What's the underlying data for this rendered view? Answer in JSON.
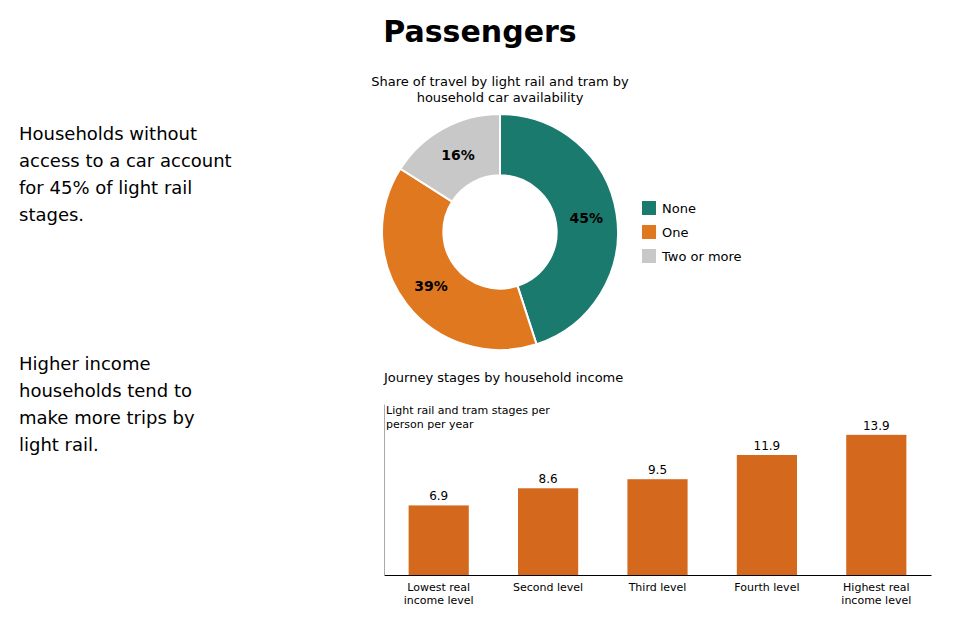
{
  "title": "Passengers",
  "annotations": [
    "Households without\naccess to a car account\nfor 45% of light rail\nstages.",
    "Higher income\nhouseholds tend to\nmake more trips by\nlight rail."
  ],
  "chart_data": [
    {
      "type": "pie",
      "title": "Share of travel by light rail and tram by\nhousehold car availability",
      "categories": [
        "None",
        "One",
        "Two or more"
      ],
      "values": [
        45,
        39,
        16
      ],
      "value_labels": [
        "45%",
        "39%",
        "16%"
      ],
      "colors": [
        "#1a7a6e",
        "#e07820",
        "#c8c8c8"
      ],
      "data_labels": true,
      "legend": "right"
    },
    {
      "type": "bar",
      "title": "Journey stages by household income",
      "subtitle": "Light rail and tram stages per\nperson per year",
      "categories": [
        "Lowest real\nincome level",
        "Second level",
        "Third level",
        "Fourth level",
        "Highest real\nincome level"
      ],
      "values": [
        6.9,
        8.6,
        9.5,
        11.9,
        13.9
      ],
      "color": "#d4691e",
      "ylim": [
        0,
        16.958
      ],
      "data_labels": true,
      "tick_labels": "x"
    }
  ]
}
